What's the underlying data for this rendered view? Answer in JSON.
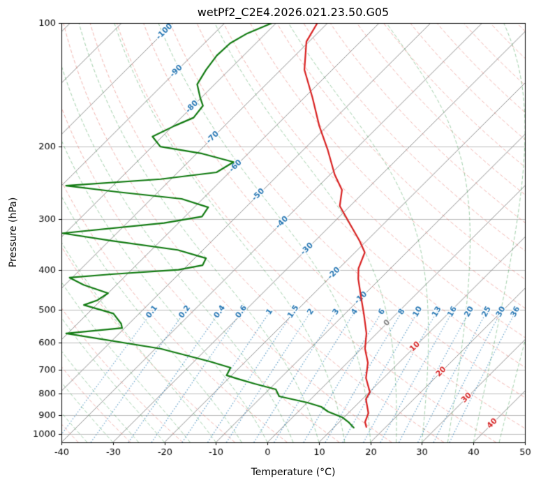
{
  "chart_data": {
    "type": "line",
    "title": "wetPf2_C2E4.2026.021.23.50.G05",
    "xlabel": "Temperature (°C)",
    "ylabel": "Pressure (hPa)",
    "axes": {
      "xlim": [
        -40,
        50
      ],
      "p_bottom": 1050,
      "p_top": 100,
      "skew": 80,
      "x_ticks": [
        -40,
        -30,
        -20,
        -10,
        0,
        10,
        20,
        30,
        40,
        50
      ],
      "p_ticks": [
        100,
        200,
        300,
        400,
        500,
        600,
        700,
        800,
        900,
        1000
      ],
      "grid_color": "#bbbbbb"
    },
    "isotherms": {
      "start": -120,
      "end": 50,
      "step": 10,
      "color": "#8f8f8f",
      "label_neg_color": "#2878b4",
      "label_zero_color": "#808080",
      "label_pos_color": "#d62728",
      "labels": [
        {
          "t": -100,
          "p": 105
        },
        {
          "t": -90,
          "p": 131
        },
        {
          "t": -80,
          "p": 160
        },
        {
          "t": -70,
          "p": 190
        },
        {
          "t": -60,
          "p": 223
        },
        {
          "t": -50,
          "p": 262
        },
        {
          "t": -40,
          "p": 306
        },
        {
          "t": -30,
          "p": 355
        },
        {
          "t": -20,
          "p": 407
        },
        {
          "t": -10,
          "p": 467
        },
        {
          "t": 0,
          "p": 538
        },
        {
          "t": 10,
          "p": 614
        },
        {
          "t": 20,
          "p": 707
        },
        {
          "t": 30,
          "p": 818
        },
        {
          "t": 40,
          "p": 945
        }
      ]
    },
    "dry_adiabats": {
      "theta_start": -40,
      "theta_end": 200,
      "step": 10,
      "color": "rgba(230,105,95,0.5)"
    },
    "moist_adiabats": {
      "t0_start": -40,
      "t0_end": 50,
      "step": 5,
      "color": "rgba(62,158,80,0.5)"
    },
    "mixing_ratio": {
      "values": [
        0.1,
        0.2,
        0.4,
        0.6,
        1,
        1.5,
        2,
        3,
        4,
        6,
        8,
        10,
        13,
        16,
        20,
        25,
        30,
        36
      ],
      "p_min": 500,
      "label_p": 505,
      "line_color": "rgba(31,119,180,0.7)",
      "label_color": "#2878b4"
    },
    "series": [
      {
        "name": "temperature",
        "color": "#d92121",
        "width": 2.2,
        "points": [
          [
            100,
            -72
          ],
          [
            111,
            -70.5
          ],
          [
            130,
            -65.4
          ],
          [
            152,
            -58.4
          ],
          [
            178,
            -51.6
          ],
          [
            204,
            -45.2
          ],
          [
            234,
            -39.1
          ],
          [
            255,
            -34.7
          ],
          [
            279,
            -32
          ],
          [
            307,
            -26.8
          ],
          [
            339,
            -21.4
          ],
          [
            362,
            -18.1
          ],
          [
            396,
            -16.2
          ],
          [
            420,
            -14.2
          ],
          [
            463,
            -10.3
          ],
          [
            511,
            -6.3
          ],
          [
            570,
            -2
          ],
          [
            621,
            0.7
          ],
          [
            672,
            4
          ],
          [
            732,
            6.6
          ],
          [
            792,
            10.1
          ],
          [
            824,
            10.7
          ],
          [
            891,
            13.9
          ],
          [
            937,
            15
          ],
          [
            963,
            16.2
          ]
        ]
      },
      {
        "name": "dewpoint",
        "color": "#107a10",
        "width": 2.2,
        "points": [
          [
            100,
            -80.8
          ],
          [
            106,
            -83.6
          ],
          [
            112,
            -85
          ],
          [
            120,
            -85.2
          ],
          [
            130,
            -84.5
          ],
          [
            141,
            -83.4
          ],
          [
            152,
            -80.2
          ],
          [
            159,
            -78.1
          ],
          [
            170,
            -77.6
          ],
          [
            178,
            -79.7
          ],
          [
            189,
            -81.9
          ],
          [
            200,
            -78.4
          ],
          [
            208,
            -68.9
          ],
          [
            218,
            -61.2
          ],
          [
            231,
            -62.5
          ],
          [
            240,
            -72
          ],
          [
            249,
            -89.1
          ],
          [
            258,
            -77.7
          ],
          [
            268,
            -64.1
          ],
          [
            281,
            -57.3
          ],
          [
            296,
            -56.7
          ],
          [
            307,
            -62.8
          ],
          [
            325,
            -80.5
          ],
          [
            339,
            -69.5
          ],
          [
            357,
            -54.9
          ],
          [
            374,
            -47.8
          ],
          [
            389,
            -47.1
          ],
          [
            399,
            -50.9
          ],
          [
            409,
            -63
          ],
          [
            417,
            -70.5
          ],
          [
            434,
            -66.4
          ],
          [
            455,
            -60
          ],
          [
            473,
            -60.7
          ],
          [
            486,
            -62.4
          ],
          [
            510,
            -55
          ],
          [
            540,
            -51.5
          ],
          [
            553,
            -50.5
          ],
          [
            570,
            -60.3
          ],
          [
            621,
            -39
          ],
          [
            667,
            -27
          ],
          [
            691,
            -21.7
          ],
          [
            721,
            -21
          ],
          [
            735,
            -18.2
          ],
          [
            756,
            -13.9
          ],
          [
            780,
            -8.7
          ],
          [
            811,
            -6.7
          ],
          [
            840,
            0
          ],
          [
            860,
            3.5
          ],
          [
            884,
            5.8
          ],
          [
            912,
            9.6
          ],
          [
            940,
            12
          ],
          [
            967,
            13.9
          ]
        ]
      }
    ]
  }
}
